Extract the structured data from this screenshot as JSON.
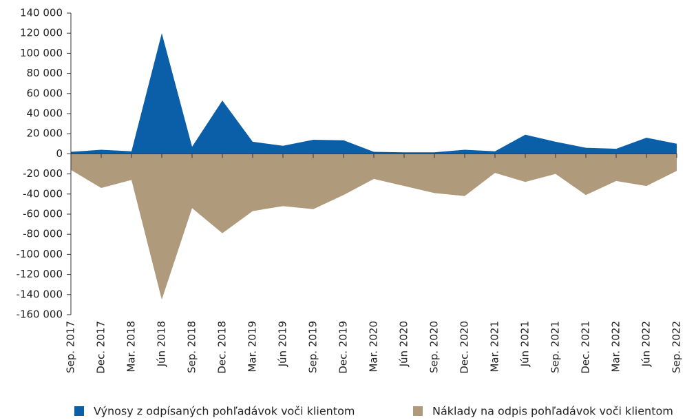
{
  "chart_data": {
    "type": "area",
    "categories": [
      "Sep. 2017",
      "Dec. 2017",
      "Mar. 2018",
      "Jún 2018",
      "Sep. 2018",
      "Dec. 2018",
      "Mar. 2019",
      "Jún 2019",
      "Sep. 2019",
      "Dec. 2019",
      "Mar. 2020",
      "Jún 2020",
      "Sep. 2020",
      "Dec. 2020",
      "Mar. 2021",
      "Jún 2021",
      "Sep. 2021",
      "Dec. 2021",
      "Mar. 2022",
      "Jún 2022",
      "Sep. 2022"
    ],
    "series": [
      {
        "name": "Výnosy z odpísaných pohľadávok voči klientom",
        "color": "#0a5fa8",
        "values": [
          2000,
          4000,
          2500,
          120000,
          7000,
          53000,
          12000,
          8000,
          14000,
          13500,
          2000,
          1500,
          1500,
          4000,
          2500,
          19000,
          12000,
          6000,
          5000,
          16000,
          10000
        ]
      },
      {
        "name": "Náklady na odpis pohľadávok voči klientom",
        "color": "#b09a7c",
        "values": [
          -16000,
          -34000,
          -26000,
          -145000,
          -54000,
          -79000,
          -57000,
          -52000,
          -55000,
          -41000,
          -25000,
          -32000,
          -39000,
          -42000,
          -19000,
          -28000,
          -20000,
          -41000,
          -27000,
          -32000,
          -17000
        ]
      }
    ],
    "ylim": [
      -160000,
      140000
    ],
    "yticks": [
      {
        "value": 140000,
        "label": "140 000"
      },
      {
        "value": 120000,
        "label": "120 000"
      },
      {
        "value": 100000,
        "label": "100 000"
      },
      {
        "value": 80000,
        "label": "80 000"
      },
      {
        "value": 60000,
        "label": "60 000"
      },
      {
        "value": 40000,
        "label": "40 000"
      },
      {
        "value": 20000,
        "label": "20 000"
      },
      0,
      {
        "value": -20000,
        "label": "-20 000"
      },
      {
        "value": -40000,
        "label": "-40 000"
      },
      {
        "value": -60000,
        "label": "-60 000"
      },
      {
        "value": -80000,
        "label": "-80 000"
      },
      {
        "value": -100000,
        "label": "-100 000"
      },
      {
        "value": -120000,
        "label": "-120 000"
      },
      {
        "value": -140000,
        "label": "-140 000"
      },
      {
        "value": -160000,
        "label": "-160 000"
      }
    ]
  }
}
